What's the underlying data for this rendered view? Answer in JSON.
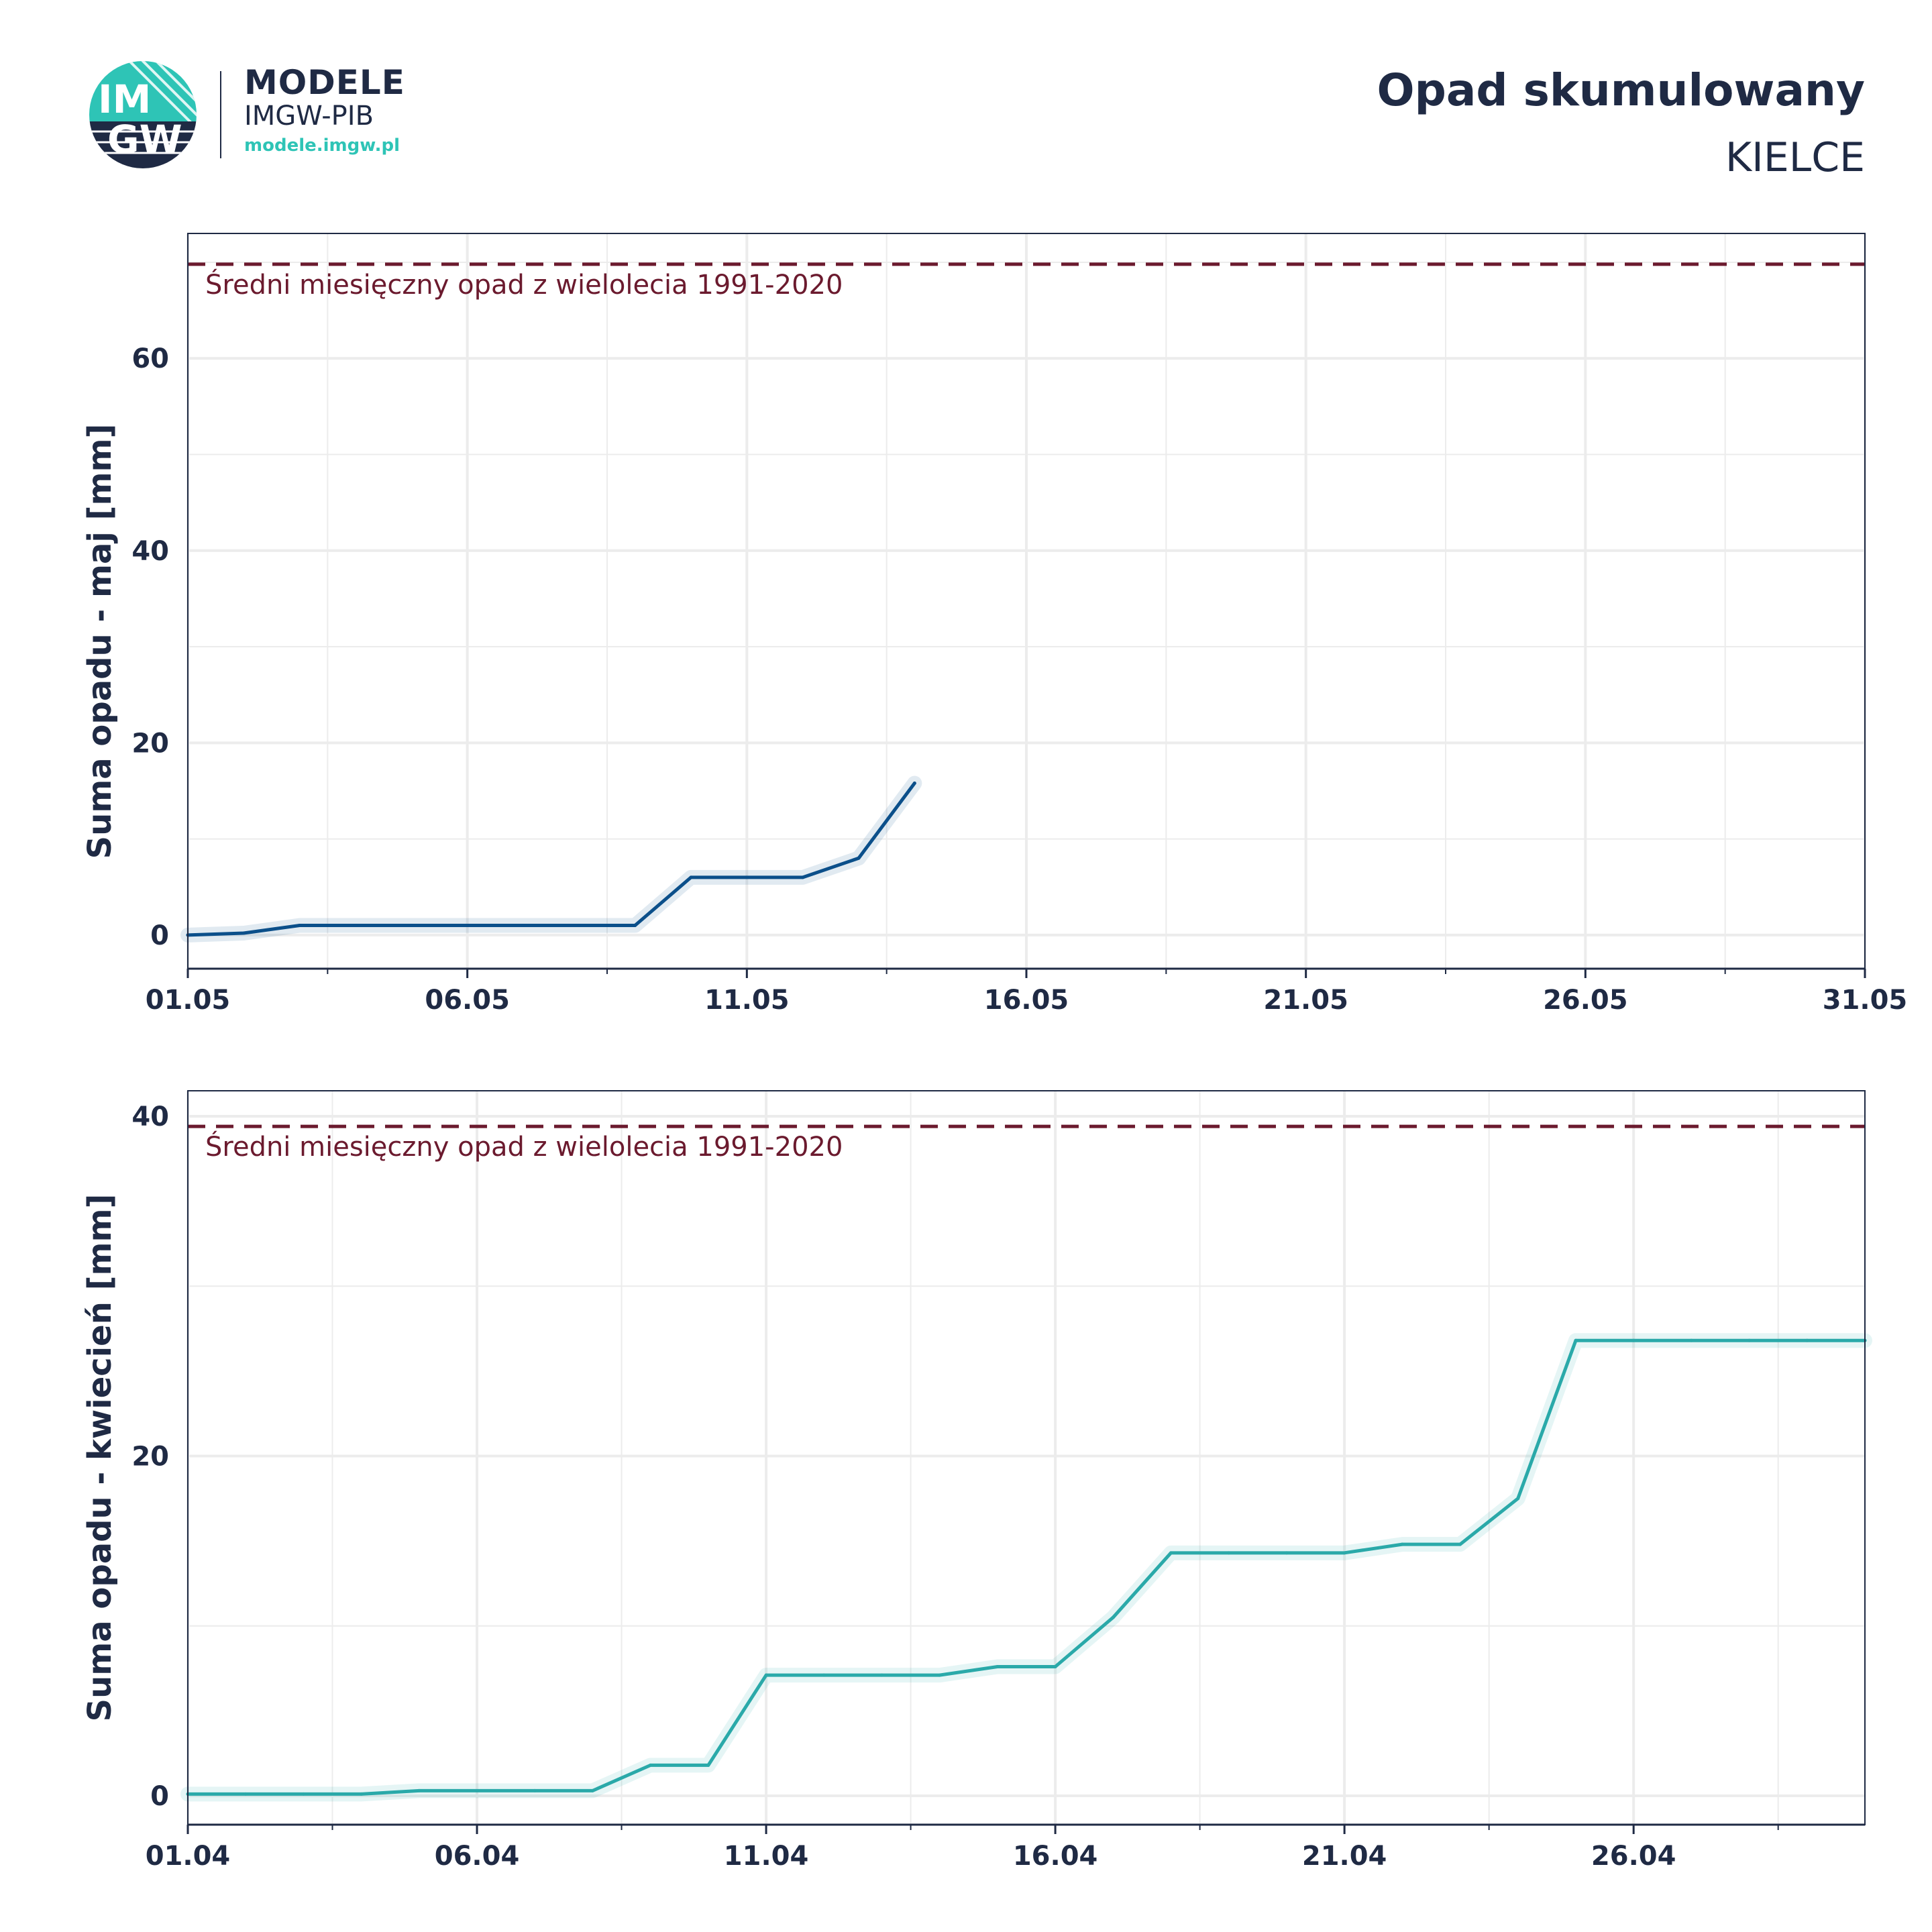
{
  "logo": {
    "icon": "imgw-globe-logo",
    "emblem_top": "IM",
    "emblem_bottom": "GW",
    "title": "MODELE",
    "subtitle": "IMGW-PIB",
    "url": "modele.imgw.pl",
    "accent_color": "#2ec4b6",
    "dark_color": "#1f2a44"
  },
  "header": {
    "title": "Opad skumulowany",
    "subtitle": "KIELCE"
  },
  "chart_data": [
    {
      "type": "line",
      "title": "",
      "ylabel": "Suma opadu - maj  [mm]",
      "xlabel": "",
      "x_ticks": [
        "01.05",
        "06.05",
        "11.05",
        "16.05",
        "21.05",
        "26.05",
        "31.05"
      ],
      "xlim": [
        1,
        31
      ],
      "ylim": [
        -3.5,
        73
      ],
      "y_ticks": [
        0,
        20,
        40,
        60
      ],
      "grid": true,
      "reference": {
        "value": 69.8,
        "label": "Średni miesięczny opad z wielolecia 1991-2020",
        "color": "#6b1a2e"
      },
      "series": [
        {
          "color": "#0b4f8a",
          "x": [
            1,
            2,
            3,
            4,
            5,
            6,
            7,
            8,
            9,
            10,
            11,
            12,
            13,
            14
          ],
          "y": [
            0,
            0.2,
            1.0,
            1.0,
            1.0,
            1.0,
            1.0,
            1.0,
            1.0,
            6.0,
            6.0,
            6.0,
            8.0,
            15.8
          ]
        }
      ]
    },
    {
      "type": "line",
      "title": "",
      "ylabel": "Suma opadu - kwiecień  [mm]",
      "xlabel": "",
      "x_ticks": [
        "01.04",
        "06.04",
        "11.04",
        "16.04",
        "21.04",
        "26.04"
      ],
      "xlim": [
        1,
        30
      ],
      "ylim": [
        -1.7,
        41.5
      ],
      "y_ticks": [
        0,
        20,
        40
      ],
      "grid": true,
      "reference": {
        "value": 39.4,
        "label": "Średni miesięczny opad z wielolecia 1991-2020",
        "color": "#6b1a2e"
      },
      "series": [
        {
          "color": "#2aa9a9",
          "x": [
            1,
            2,
            3,
            4,
            5,
            6,
            7,
            8,
            9,
            10,
            11,
            12,
            13,
            14,
            15,
            16,
            17,
            18,
            19,
            20,
            21,
            22,
            23,
            24,
            25,
            26,
            27,
            28,
            29,
            30
          ],
          "y": [
            0.1,
            0.1,
            0.1,
            0.1,
            0.3,
            0.3,
            0.3,
            0.3,
            1.8,
            1.8,
            7.1,
            7.1,
            7.1,
            7.1,
            7.6,
            7.6,
            10.5,
            14.3,
            14.3,
            14.3,
            14.3,
            14.8,
            14.8,
            17.5,
            26.8,
            26.8,
            26.8,
            26.8,
            26.8,
            26.8
          ]
        }
      ]
    }
  ]
}
